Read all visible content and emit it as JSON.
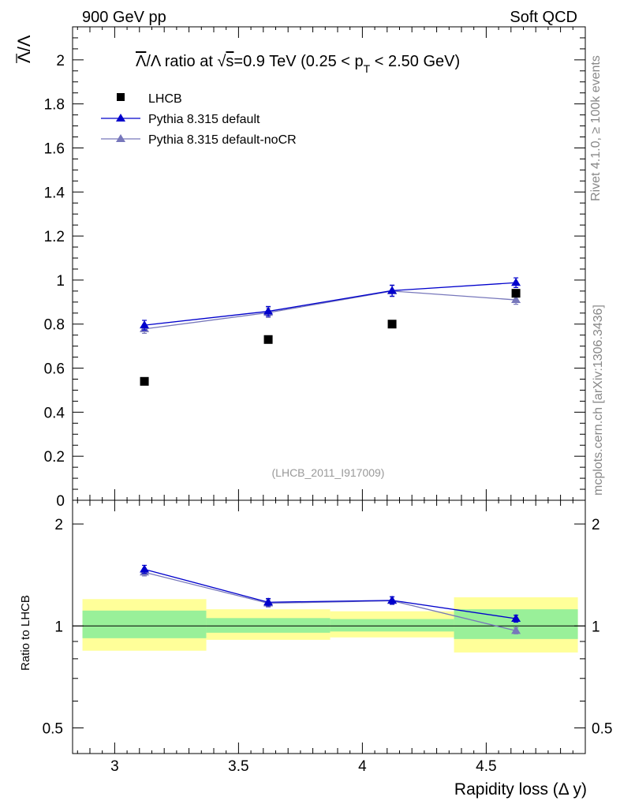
{
  "header": {
    "left": "900 GeV pp",
    "right": "Soft QCD"
  },
  "side_labels": {
    "rivet": "Rivet 4.1.0, ≥ 100k events",
    "mcplots": "mcplots.cern.ch [arXiv:1306.3436]"
  },
  "watermark": "(LHCB_2011_I917009)",
  "chart_data": [
    {
      "type": "scatter",
      "panel": "main",
      "title_parts": {
        "t1": "/Λ ratio at ",
        "t2": "s",
        "t3": "=0.9 TeV (0.25 < p",
        "t4": "T",
        "t5": " < 2.50 GeV)"
      },
      "ylabel": "Λ/Λ",
      "ylim": [
        0,
        2.15
      ],
      "yticks": [
        {
          "v": 0,
          "label": "0"
        },
        {
          "v": 0.2,
          "label": "0.2"
        },
        {
          "v": 0.4,
          "label": "0.4"
        },
        {
          "v": 0.6,
          "label": "0.6"
        },
        {
          "v": 0.8,
          "label": "0.8"
        },
        {
          "v": 1.0,
          "label": "1"
        },
        {
          "v": 1.2,
          "label": "1.2"
        },
        {
          "v": 1.4,
          "label": "1.4"
        },
        {
          "v": 1.6,
          "label": "1.6"
        },
        {
          "v": 1.8,
          "label": "1.8"
        },
        {
          "v": 2.0,
          "label": "2"
        }
      ],
      "xlim": [
        2.83,
        4.9
      ],
      "legend_position": "top-left",
      "series": [
        {
          "name": "LHCB",
          "marker": "square",
          "color": "#000000",
          "x": [
            3.12,
            3.62,
            4.12,
            4.62
          ],
          "y": [
            0.54,
            0.73,
            0.8,
            0.94
          ],
          "err": [
            0.005,
            0.005,
            0.005,
            0.005
          ]
        },
        {
          "name": "Pythia 8.315 default",
          "marker": "triangle",
          "color": "#0000cc",
          "x": [
            3.12,
            3.62,
            4.12,
            4.62
          ],
          "y": [
            0.795,
            0.858,
            0.952,
            0.988
          ],
          "err": [
            0.022,
            0.022,
            0.025,
            0.022
          ]
        },
        {
          "name": "Pythia 8.315 default-noCR",
          "marker": "triangle",
          "color": "#7777bb",
          "x": [
            3.12,
            3.62,
            4.12,
            4.62
          ],
          "y": [
            0.778,
            0.852,
            0.95,
            0.91
          ],
          "err": [
            0.02,
            0.022,
            0.025,
            0.02
          ]
        }
      ]
    },
    {
      "type": "scatter",
      "panel": "ratio",
      "ylabel": "Ratio to LHCB",
      "yscale": "log",
      "ylim": [
        0.42,
        2.35
      ],
      "yticks": [
        {
          "v": 0.5,
          "label": "0.5"
        },
        {
          "v": 1,
          "label": "1"
        },
        {
          "v": 2,
          "label": "2"
        }
      ],
      "xlabel": "Rapidity loss (Δ y)",
      "xlim": [
        2.83,
        4.9
      ],
      "xticks": [
        {
          "v": 3,
          "label": "3"
        },
        {
          "v": 3.5,
          "label": "3.5"
        },
        {
          "v": 4,
          "label": "4"
        },
        {
          "v": 4.5,
          "label": "4.5"
        }
      ],
      "bands": [
        {
          "x0": 2.87,
          "x1": 3.37,
          "yellow": [
            0.845,
            1.2
          ],
          "green": [
            0.92,
            1.11
          ]
        },
        {
          "x0": 3.37,
          "x1": 3.87,
          "yellow": [
            0.91,
            1.12
          ],
          "green": [
            0.955,
            1.055
          ]
        },
        {
          "x0": 3.87,
          "x1": 4.37,
          "yellow": [
            0.925,
            1.105
          ],
          "green": [
            0.963,
            1.048
          ]
        },
        {
          "x0": 4.37,
          "x1": 4.87,
          "yellow": [
            0.835,
            1.215
          ],
          "green": [
            0.915,
            1.12
          ]
        }
      ],
      "series": [
        {
          "name": "Pythia 8.315 default",
          "color": "#0000cc",
          "x": [
            3.12,
            3.62,
            4.12,
            4.62
          ],
          "y": [
            1.47,
            1.175,
            1.19,
            1.051
          ],
          "err": [
            0.04,
            0.03,
            0.03,
            0.025
          ]
        },
        {
          "name": "Pythia 8.315 default-noCR",
          "color": "#7777bb",
          "x": [
            3.12,
            3.62,
            4.12,
            4.62
          ],
          "y": [
            1.44,
            1.167,
            1.187,
            0.968
          ],
          "err": [
            0.035,
            0.03,
            0.03,
            0.02
          ]
        }
      ]
    }
  ]
}
